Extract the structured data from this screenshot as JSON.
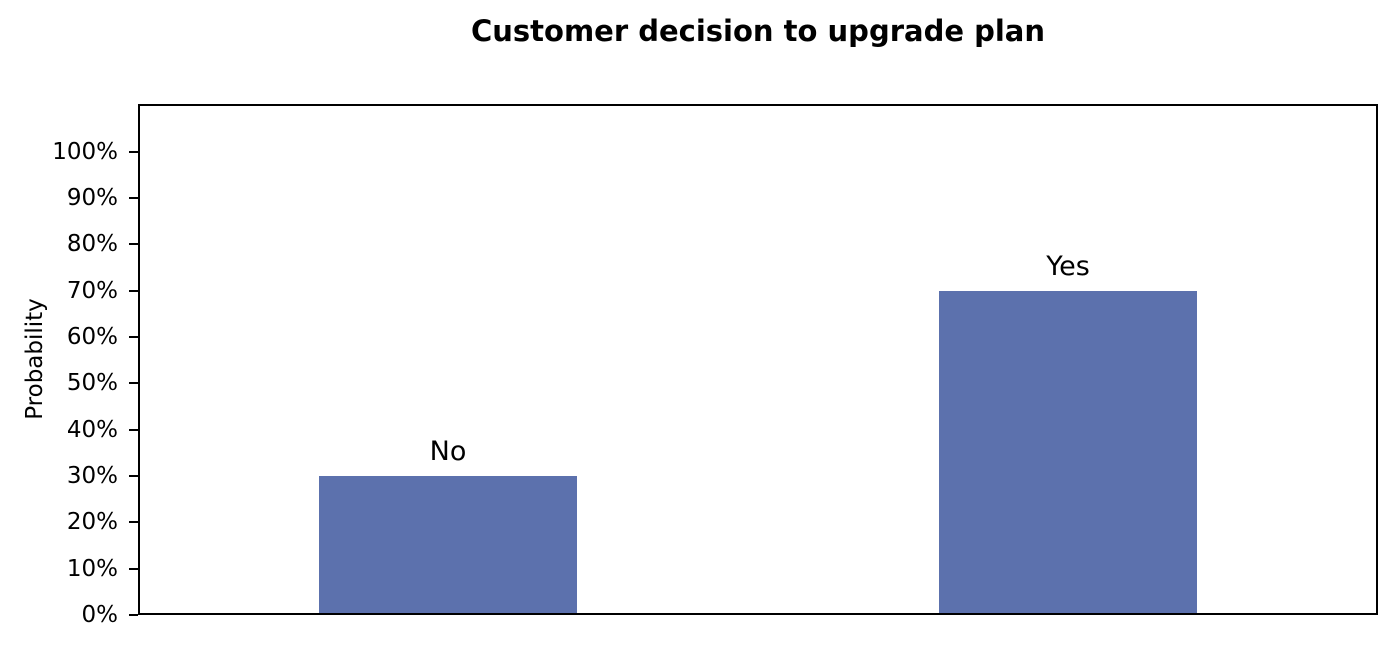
{
  "page": {
    "background_color": "#ffffff",
    "text_color": "#000000"
  },
  "chart_data": {
    "type": "bar",
    "title": "Customer decision to upgrade plan",
    "xlabel": "",
    "ylabel": "Probability",
    "categories": [
      "No",
      "Yes"
    ],
    "values": [
      30,
      70
    ],
    "value_unit": "percent",
    "ylim": [
      0,
      110
    ],
    "yticks": [
      0,
      10,
      20,
      30,
      40,
      50,
      60,
      70,
      80,
      90,
      100
    ],
    "ytick_labels": [
      "0%",
      "10%",
      "20%",
      "30%",
      "40%",
      "50%",
      "60%",
      "70%",
      "80%",
      "90%",
      "100%"
    ],
    "xtick_labels_shown": false,
    "bar_labels_position": "above",
    "bar_color": "#5C71AD",
    "axis_color": "#000000",
    "grid": false,
    "legend_position": "none"
  }
}
